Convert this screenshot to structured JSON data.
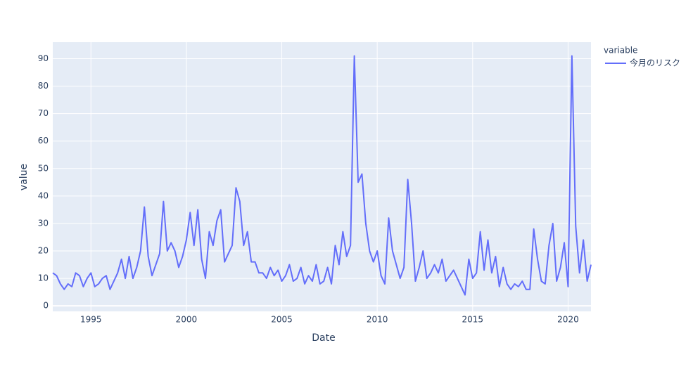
{
  "chart_data": {
    "type": "line",
    "x_label": "Date",
    "y_label": "value",
    "legend_title": "variable",
    "x": [
      1993,
      1993.2,
      1993.4,
      1993.6,
      1993.8,
      1994,
      1994.2,
      1994.4,
      1994.6,
      1994.8,
      1995,
      1995.2,
      1995.4,
      1995.6,
      1995.8,
      1996,
      1996.2,
      1996.4,
      1996.6,
      1996.8,
      1997,
      1997.2,
      1997.4,
      1997.6,
      1997.8,
      1998,
      1998.2,
      1998.4,
      1998.6,
      1998.8,
      1999,
      1999.2,
      1999.4,
      1999.6,
      1999.8,
      2000,
      2000.2,
      2000.4,
      2000.6,
      2000.8,
      2001,
      2001.2,
      2001.4,
      2001.6,
      2001.8,
      2002,
      2002.2,
      2002.4,
      2002.6,
      2002.8,
      2003,
      2003.2,
      2003.4,
      2003.6,
      2003.8,
      2004,
      2004.2,
      2004.4,
      2004.6,
      2004.8,
      2005,
      2005.2,
      2005.4,
      2005.6,
      2005.8,
      2006,
      2006.2,
      2006.4,
      2006.6,
      2006.8,
      2007,
      2007.2,
      2007.4,
      2007.6,
      2007.8,
      2008,
      2008.2,
      2008.4,
      2008.6,
      2008.8,
      2009,
      2009.2,
      2009.4,
      2009.6,
      2009.8,
      2010,
      2010.2,
      2010.4,
      2010.6,
      2010.8,
      2011,
      2011.2,
      2011.4,
      2011.6,
      2011.8,
      2012,
      2012.2,
      2012.4,
      2012.6,
      2012.8,
      2013,
      2013.2,
      2013.4,
      2013.6,
      2013.8,
      2014,
      2014.2,
      2014.4,
      2014.6,
      2014.8,
      2015,
      2015.2,
      2015.4,
      2015.6,
      2015.8,
      2016,
      2016.2,
      2016.4,
      2016.6,
      2016.8,
      2017,
      2017.2,
      2017.4,
      2017.6,
      2017.8,
      2018,
      2018.2,
      2018.4,
      2018.6,
      2018.8,
      2019,
      2019.2,
      2019.4,
      2019.6,
      2019.8,
      2020,
      2020.2,
      2020.4,
      2020.6,
      2020.8,
      2021,
      2021.2
    ],
    "series": [
      {
        "name": "今月のリスク",
        "color": "#636efa",
        "values": [
          12,
          11,
          8,
          6,
          8,
          7,
          12,
          11,
          7,
          10,
          12,
          7,
          8,
          10,
          11,
          6,
          9,
          12,
          17,
          10,
          18,
          10,
          14,
          20,
          36,
          18,
          11,
          15,
          19,
          38,
          20,
          23,
          20,
          14,
          18,
          24,
          34,
          22,
          35,
          17,
          10,
          27,
          22,
          31,
          35,
          16,
          19,
          22,
          43,
          38,
          22,
          27,
          16,
          16,
          12,
          12,
          10,
          14,
          11,
          13,
          9,
          11,
          15,
          9,
          10,
          14,
          8,
          11,
          9,
          15,
          8,
          9,
          14,
          8,
          22,
          15,
          27,
          18,
          22,
          91,
          45,
          48,
          30,
          20,
          16,
          20,
          11,
          8,
          32,
          20,
          15,
          10,
          14,
          46,
          30,
          9,
          14,
          20,
          10,
          12,
          15,
          12,
          17,
          9,
          11,
          13,
          10,
          7,
          4,
          17,
          10,
          12,
          27,
          13,
          24,
          12,
          18,
          7,
          14,
          8,
          6,
          8,
          7,
          9,
          6,
          6,
          28,
          17,
          9,
          8,
          22,
          30,
          9,
          14,
          23,
          7,
          91,
          29,
          12,
          24,
          9,
          15
        ]
      }
    ],
    "xlim": [
      1993,
      2021.2
    ],
    "xticks": [
      1995,
      2000,
      2005,
      2010,
      2015,
      2020
    ],
    "ylim": [
      -2,
      96
    ],
    "yticks": [
      0,
      10,
      20,
      30,
      40,
      50,
      60,
      70,
      80,
      90
    ],
    "grid": true,
    "background": "#e5ecf6",
    "legend": "right"
  }
}
